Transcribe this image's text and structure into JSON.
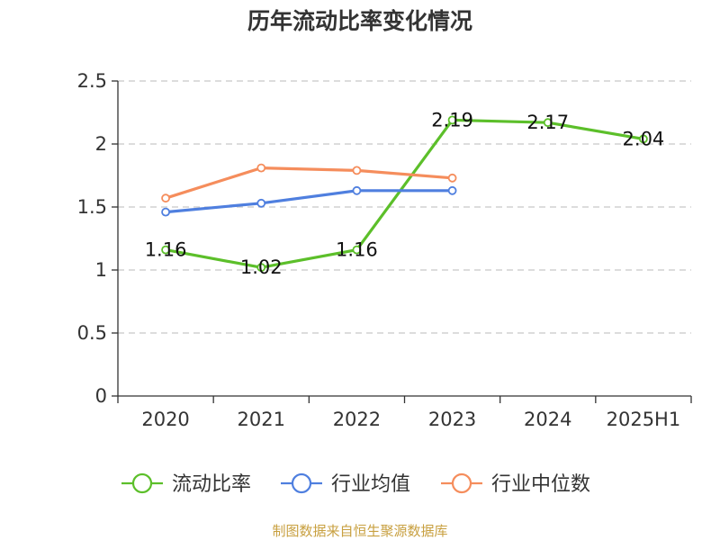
{
  "chart_data": {
    "type": "line",
    "title": "历年流动比率变化情况",
    "categories": [
      "2020",
      "2021",
      "2022",
      "2023",
      "2024",
      "2025H1"
    ],
    "yticks": [
      "0",
      "0.5",
      "1",
      "1.5",
      "2",
      "2.5"
    ],
    "ylim": [
      0,
      2.5
    ],
    "grid": true,
    "legend_position": "bottom",
    "series": [
      {
        "name": "流动比率",
        "color": "#5cbf2a",
        "values": [
          1.16,
          1.02,
          1.16,
          2.19,
          2.17,
          2.04
        ],
        "labels": [
          "1.16",
          "1.02",
          "1.16",
          "2.19",
          "2.17",
          "2.04"
        ]
      },
      {
        "name": "行业均值",
        "color": "#4f7fdf",
        "values": [
          1.46,
          1.53,
          1.63,
          1.63,
          null,
          null
        ]
      },
      {
        "name": "行业中位数",
        "color": "#f58d5c",
        "values": [
          1.57,
          1.81,
          1.79,
          1.73,
          null,
          null
        ]
      }
    ],
    "source": "制图数据来自恒生聚源数据库"
  }
}
